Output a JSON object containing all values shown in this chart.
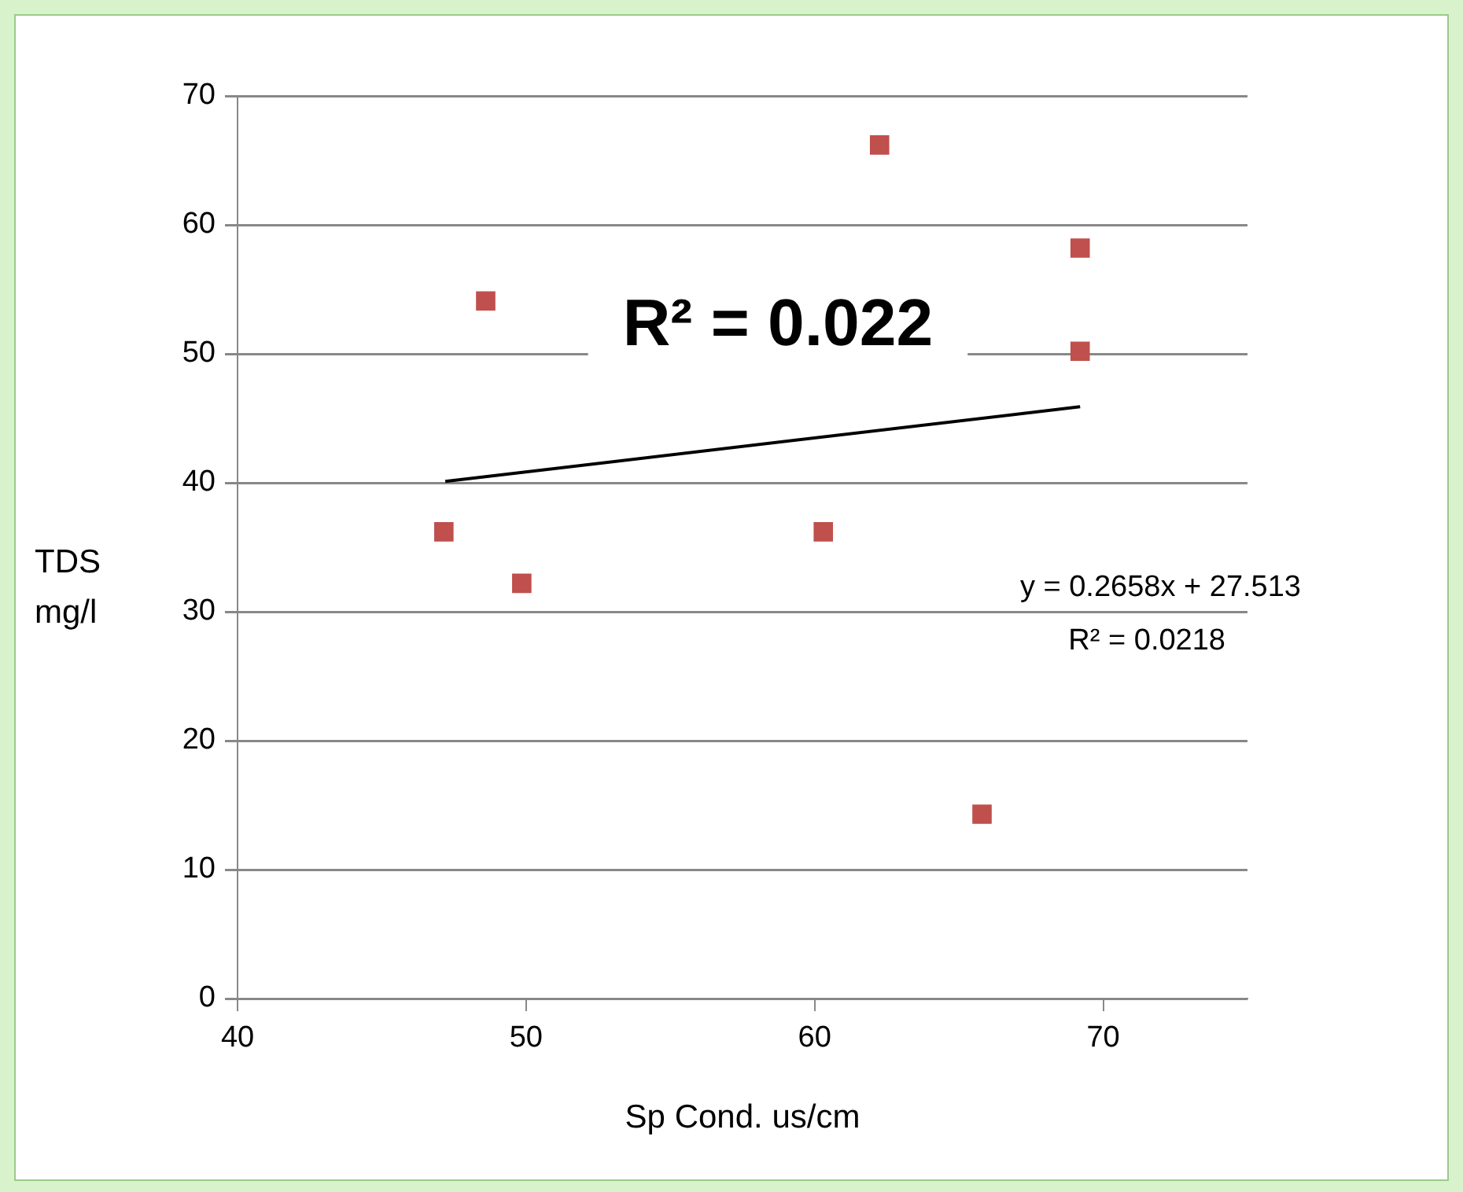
{
  "chart_data": {
    "type": "scatter",
    "xlabel": "Sp Cond. us/cm",
    "ylabel": "TDS\nmg/l",
    "series": [
      {
        "type": "scatter",
        "x": [
          47.15,
          48.6,
          49.85,
          60.3,
          62.25,
          65.8,
          69.2,
          69.2
        ],
        "values": [
          36.2,
          54.1,
          32.2,
          36.2,
          66.2,
          14.3,
          58.2,
          50.2
        ],
        "color": "#c0504d",
        "marker": "square"
      },
      {
        "type": "line",
        "x": [
          47.2,
          69.2
        ],
        "values": [
          40.1,
          45.9
        ],
        "color": "#000000",
        "marker": "none"
      }
    ],
    "xlim": [
      40,
      75
    ],
    "xticks": [
      40,
      50,
      60,
      70
    ],
    "ylim": [
      0,
      70
    ],
    "yticks": [
      0,
      10,
      20,
      30,
      40,
      50,
      60,
      70
    ],
    "grid": "y",
    "legend": false,
    "annotations": [
      "R² = 0.022",
      "y = 0.2658x + 27.513",
      "R² = 0.0218"
    ]
  }
}
